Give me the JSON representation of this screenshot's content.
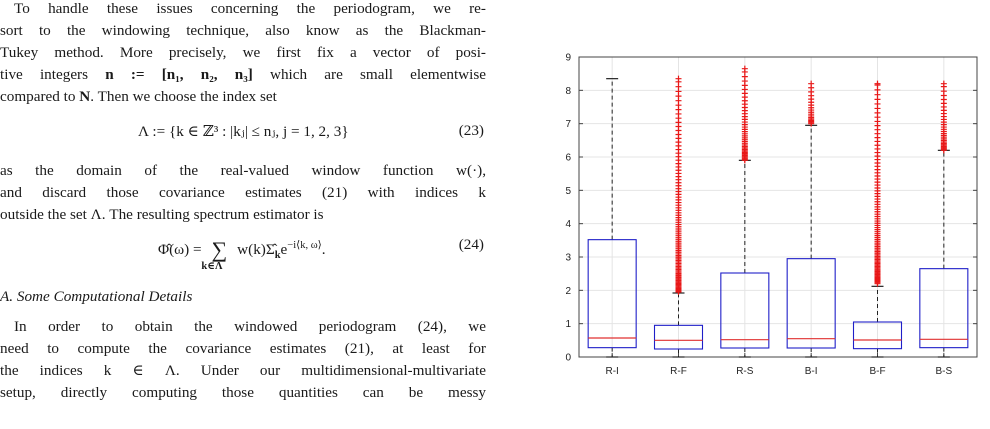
{
  "paragraph1": {
    "line1": "To handle these issues concerning the periodogram, we re-",
    "line2": "sort to the windowing technique, also know as the Blackman-",
    "line3": "Tukey method. More precisely, we first fix a vector of posi-",
    "line4_pre": "tive integers ",
    "line4_math": "n := [n₁, n₂, n₃]",
    "line4_post": " which are small elementwise",
    "line5_pre": "compared to ",
    "line5_math": "N",
    "line5_post": ". Then we choose the index set"
  },
  "eq23": {
    "formula": "Λ := {k ∈ ℤ³ : |kⱼ| ≤ nⱼ,  j = 1, 2, 3}",
    "number": "(23)"
  },
  "paragraph2": {
    "line1": "as the domain of the real-valued window function w(·),",
    "line2": "and discard those covariance estimates (21) with indices k",
    "line3": "outside the set Λ. The resulting spectrum estimator is"
  },
  "eq24": {
    "formula": "Φ̂(ω) = ∑ w(k)Σ̂ₖe^{−i⟨k, ω⟩}.",
    "lhs": "Φ̂(ω) =",
    "sum": "∑",
    "sub": "k∈Λ",
    "rhs": "w(k)Σ̂",
    "rhs_sub": "k",
    "rhs_e": "e",
    "rhs_sup": "−i⟨k, ω⟩",
    "rhs_end": ".",
    "number": "(24)"
  },
  "section": {
    "heading": "A. Some Computational Details"
  },
  "paragraph3": {
    "line1": "In order to obtain the windowed periodogram (24), we",
    "line2": "need to compute the covariance estimates (21), at least for",
    "line3": "the indices k ∈ Λ. Under our multidimensional-multivariate",
    "line4": "setup, directly computing those quantities can be messy"
  },
  "chart_data": {
    "type": "boxplot",
    "categories": [
      "R-I",
      "R-F",
      "R-S",
      "B-I",
      "B-F",
      "B-S"
    ],
    "ylim": [
      0,
      9
    ],
    "yticks": [
      "0",
      "1",
      "2",
      "3",
      "4",
      "5",
      "6",
      "7",
      "8",
      "9"
    ],
    "grid": true,
    "colors": {
      "box": "#1f1fc8",
      "median": "#e03030",
      "outlier": "#e81818",
      "whisker": "#222222",
      "grid": "#e4e4e4"
    },
    "boxes": [
      {
        "category": "R-I",
        "whisker_low": 0.0,
        "q1": 0.28,
        "median": 0.57,
        "q3": 3.52,
        "whisker_high": 8.35,
        "outliers": []
      },
      {
        "category": "R-F",
        "whisker_low": 0.0,
        "q1": 0.24,
        "median": 0.5,
        "q3": 0.95,
        "whisker_high": 1.92,
        "outlier_range": [
          1.95,
          8.35
        ]
      },
      {
        "category": "R-S",
        "whisker_low": 0.0,
        "q1": 0.27,
        "median": 0.52,
        "q3": 2.52,
        "whisker_high": 5.9,
        "outlier_range": [
          5.9,
          8.65
        ]
      },
      {
        "category": "B-I",
        "whisker_low": 0.0,
        "q1": 0.27,
        "median": 0.55,
        "q3": 2.95,
        "whisker_high": 6.95,
        "outlier_range": [
          7.0,
          8.2
        ]
      },
      {
        "category": "B-F",
        "whisker_low": 0.0,
        "q1": 0.25,
        "median": 0.51,
        "q3": 1.05,
        "whisker_high": 2.12,
        "outlier_range": [
          2.2,
          8.2
        ]
      },
      {
        "category": "B-S",
        "whisker_low": 0.0,
        "q1": 0.28,
        "median": 0.53,
        "q3": 2.65,
        "whisker_high": 6.2,
        "outlier_range": [
          6.2,
          8.2
        ]
      }
    ]
  }
}
